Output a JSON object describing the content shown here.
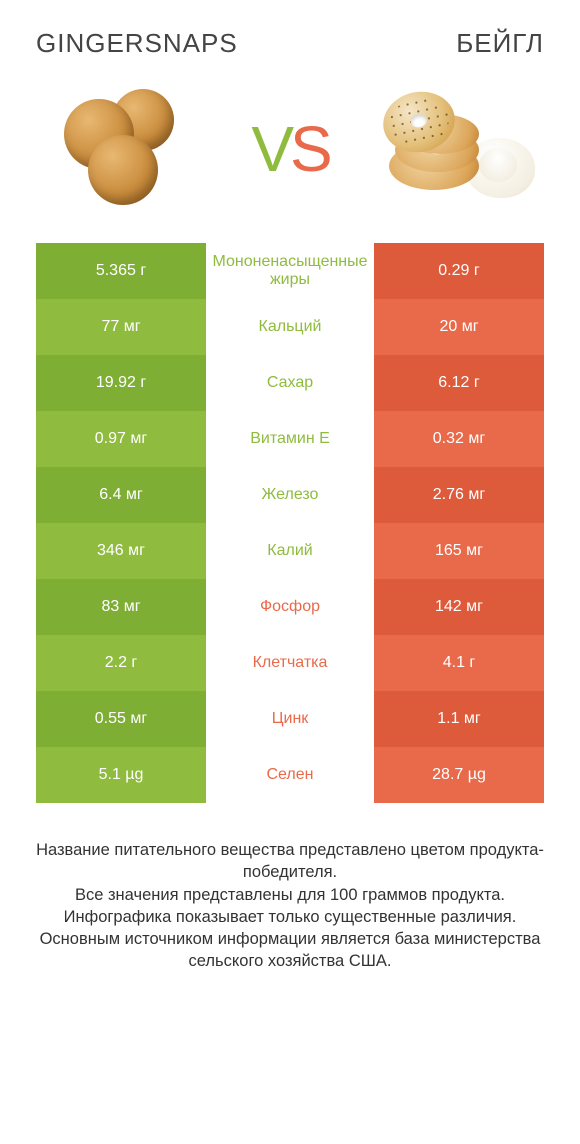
{
  "colors": {
    "green": "#8fbc3f",
    "green_dark": "#7fae34",
    "orange": "#e86a4a",
    "orange_dark": "#dd5a3a",
    "text": "#333333",
    "header_text": "#444444",
    "white": "#ffffff"
  },
  "header": {
    "left_title": "GINGERSNAPS",
    "right_title": "БЕЙГЛ"
  },
  "vs": {
    "v": "V",
    "s": "S"
  },
  "rows": [
    {
      "left": "5.365 г",
      "label": "Мононенасыщенные жиры",
      "right": "0.29 г",
      "winner": "left"
    },
    {
      "left": "77 мг",
      "label": "Кальций",
      "right": "20 мг",
      "winner": "left"
    },
    {
      "left": "19.92 г",
      "label": "Сахар",
      "right": "6.12 г",
      "winner": "left"
    },
    {
      "left": "0.97 мг",
      "label": "Витамин E",
      "right": "0.32 мг",
      "winner": "left"
    },
    {
      "left": "6.4 мг",
      "label": "Железо",
      "right": "2.76 мг",
      "winner": "left"
    },
    {
      "left": "346 мг",
      "label": "Калий",
      "right": "165 мг",
      "winner": "left"
    },
    {
      "left": "83 мг",
      "label": "Фосфор",
      "right": "142 мг",
      "winner": "right"
    },
    {
      "left": "2.2 г",
      "label": "Клетчатка",
      "right": "4.1 г",
      "winner": "right"
    },
    {
      "left": "0.55 мг",
      "label": "Цинк",
      "right": "1.1 мг",
      "winner": "right"
    },
    {
      "left": "5.1 µg",
      "label": "Селен",
      "right": "28.7 µg",
      "winner": "right"
    }
  ],
  "footer": {
    "line1": "Название питательного вещества представлено цветом продукта-победителя.",
    "line2": "Все значения представлены для 100 граммов продукта.",
    "line3": "Инфографика показывает только существенные различия.",
    "line4": "Основным источником информации является база министерства сельского хозяйства США."
  }
}
